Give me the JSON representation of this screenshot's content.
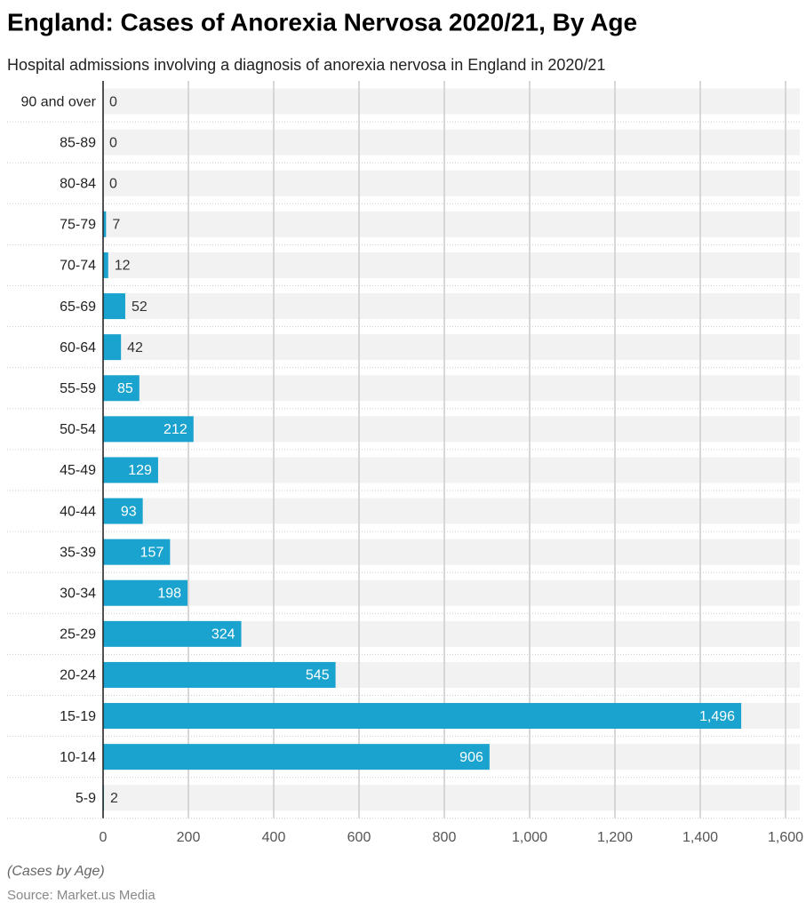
{
  "chart_data": {
    "type": "bar",
    "orientation": "horizontal",
    "title": "England: Cases of Anorexia Nervosa 2020/21, By Age",
    "subtitle": "Hospital admissions involving a diagnosis of anorexia nervosa in England in 2020/21",
    "categories": [
      "90 and over",
      "85-89",
      "80-84",
      "75-79",
      "70-74",
      "65-69",
      "60-64",
      "55-59",
      "50-54",
      "45-49",
      "40-44",
      "35-39",
      "30-34",
      "25-29",
      "20-24",
      "15-19",
      "10-14",
      "5-9"
    ],
    "values": [
      0,
      0,
      0,
      7,
      12,
      52,
      42,
      85,
      212,
      129,
      93,
      157,
      198,
      324,
      545,
      1496,
      906,
      2
    ],
    "value_labels": [
      "0",
      "0",
      "0",
      "7",
      "12",
      "52",
      "42",
      "85",
      "212",
      "129",
      "93",
      "157",
      "198",
      "324",
      "545",
      "1,496",
      "906",
      "2"
    ],
    "color": "#1ba3cf",
    "xlim": [
      0,
      1600
    ],
    "xticks": [
      0,
      200,
      400,
      600,
      800,
      {
        "value": 1000,
        "label": "1,000"
      },
      {
        "value": 1200,
        "label": "1,200"
      },
      {
        "value": 1400,
        "label": "1,400"
      },
      {
        "value": 1600,
        "label": "1,600"
      }
    ],
    "grid": true,
    "note": "(Cases by Age)",
    "source": "Source: Market.us Media"
  }
}
